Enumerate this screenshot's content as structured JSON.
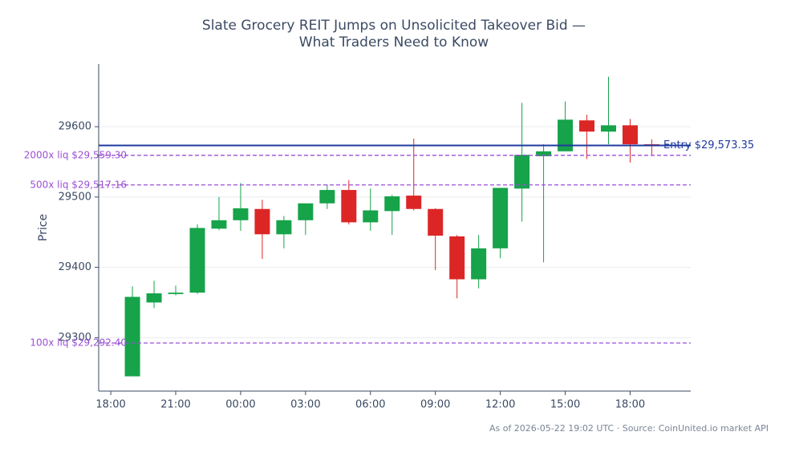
{
  "chart_data": {
    "type": "candlestick",
    "title": "Slate Grocery REIT Jumps on Unsolicited Takeover Bid —",
    "subtitle": "What Traders Need to Know",
    "y_label": "Price",
    "footer": "As of 2026-05-22 19:02 UTC · Source: CoinUnited.io market API",
    "x": [
      "19:00",
      "20:00",
      "21:00",
      "22:00",
      "23:00",
      "00:00",
      "01:00",
      "02:00",
      "03:00",
      "04:00",
      "05:00",
      "06:00",
      "07:00",
      "08:00",
      "09:00",
      "10:00",
      "11:00",
      "12:00",
      "13:00",
      "14:00",
      "15:00",
      "16:00",
      "17:00",
      "18:00",
      "19:00"
    ],
    "open": [
      29245,
      29350,
      29362,
      29364,
      29455,
      29467,
      29483,
      29447,
      29467,
      29491,
      29510,
      29464,
      29480,
      29502,
      29483,
      29444,
      29383,
      29427,
      29512,
      29558,
      29565,
      29609,
      29593,
      29602,
      29575
    ],
    "high": [
      29373,
      29381,
      29374,
      29461,
      29500,
      29520,
      29496,
      29473,
      29491,
      29518,
      29524,
      29512,
      29503,
      29583,
      29484,
      29446,
      29446,
      29513,
      29634,
      29575,
      29636,
      29617,
      29671,
      29611,
      29582
    ],
    "low": [
      29245,
      29342,
      29360,
      29362,
      29453,
      29452,
      29412,
      29427,
      29446,
      29483,
      29461,
      29452,
      29446,
      29481,
      29396,
      29356,
      29370,
      29413,
      29465,
      29407,
      29565,
      29554,
      29575,
      29549,
      29559
    ],
    "close": [
      29358,
      29363,
      29364,
      29456,
      29467,
      29484,
      29447,
      29467,
      29491,
      29510,
      29464,
      29481,
      29501,
      29483,
      29445,
      29383,
      29427,
      29513,
      29560,
      29565,
      29610,
      29593,
      29602,
      29575,
      29574
    ],
    "up_color": "#16a34a",
    "down_color": "#dc2626",
    "xlim": [
      -1.56,
      25.8
    ],
    "xticks": [
      {
        "value": -1,
        "label": "18:00"
      },
      {
        "value": 2,
        "label": "21:00"
      },
      {
        "value": 5,
        "label": "00:00"
      },
      {
        "value": 8,
        "label": "03:00"
      },
      {
        "value": 11,
        "label": "06:00"
      },
      {
        "value": 14,
        "label": "09:00"
      },
      {
        "value": 17,
        "label": "12:00"
      },
      {
        "value": 20,
        "label": "15:00"
      },
      {
        "value": 23,
        "label": "18:00"
      }
    ],
    "ylim": [
      29224,
      29689
    ],
    "yticks": [
      29300,
      29400,
      29500,
      29600
    ],
    "grid": true,
    "levels": [
      {
        "value": 29573.35,
        "label": "Entry $29,573.35",
        "color": "#1e3a9f",
        "style": "solid"
      },
      {
        "value": 29559.3,
        "label": "2000x liq $29,559.30",
        "color": "#9b4fd6",
        "style": "dashed"
      },
      {
        "value": 29517.16,
        "label": "500x liq $29,517.16",
        "color": "#9b4fd6",
        "style": "dashed"
      },
      {
        "value": 29292.4,
        "label": "100x liq $29,292.40",
        "color": "#9b4fd6",
        "style": "dashed"
      }
    ]
  }
}
